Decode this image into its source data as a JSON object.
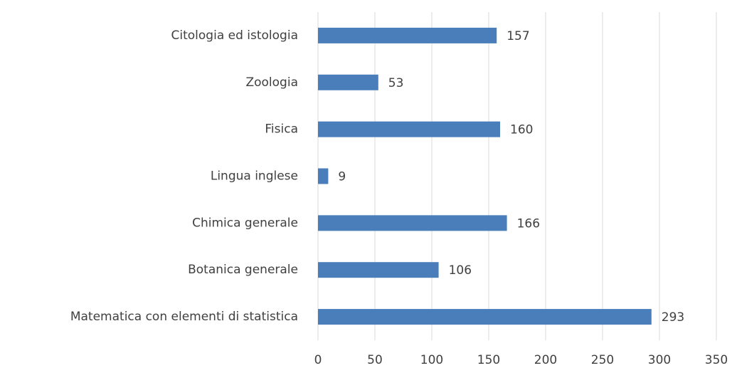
{
  "chart_data": {
    "type": "barh",
    "categories": [
      "Citologia ed istologia",
      "Zoologia",
      "Fisica",
      "Lingua inglese",
      "Chimica generale",
      "Botanica generale",
      "Matematica con elementi di statistica"
    ],
    "values": [
      157,
      53,
      160,
      9,
      166,
      106,
      293
    ],
    "color": "#4a7ebb",
    "xlim": [
      0,
      350
    ],
    "xticks": [
      0,
      50,
      100,
      150,
      200,
      250,
      300,
      350
    ],
    "grid": true
  }
}
